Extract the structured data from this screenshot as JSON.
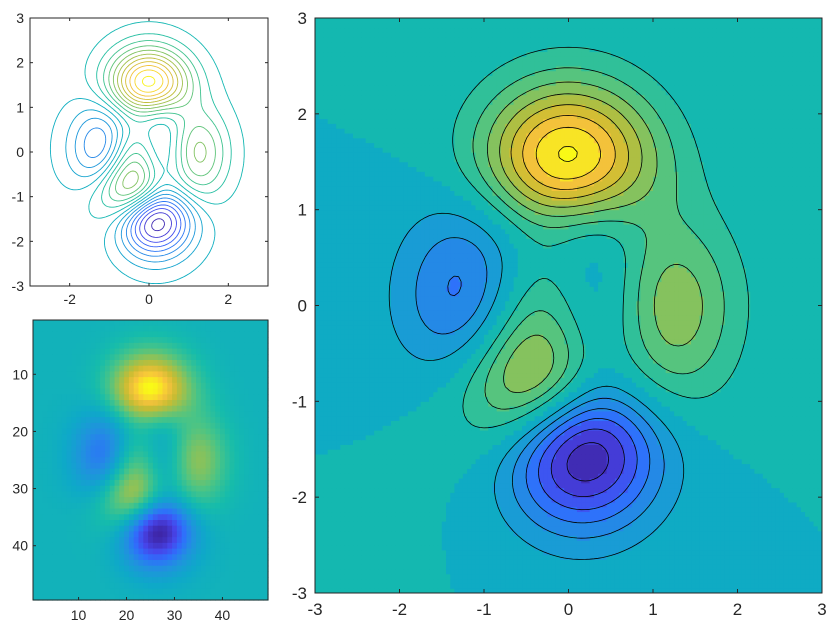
{
  "chart_data": [
    {
      "type": "contour",
      "function": "peaks",
      "x_range": [
        -3,
        3
      ],
      "y_range": [
        -3,
        3
      ],
      "xlim": [
        -3,
        3
      ],
      "ylim": [
        -3,
        3
      ],
      "xticks": [
        "-2",
        "0",
        "2"
      ],
      "yticks": [
        "3",
        "2",
        "1",
        "0",
        "-1",
        "-2",
        "-3"
      ],
      "levels": 20,
      "filled": false,
      "colormap": "parula",
      "title": "",
      "xlabel": "",
      "ylabel": ""
    },
    {
      "type": "heatmap",
      "function": "peaks",
      "grid_size": [
        49,
        49
      ],
      "xticks": [
        "10",
        "20",
        "30",
        "40"
      ],
      "yticks": [
        "10",
        "20",
        "30",
        "40"
      ],
      "y_direction": "reverse",
      "colormap": "parula",
      "title": "",
      "xlabel": "",
      "ylabel": ""
    },
    {
      "type": "contourf",
      "function": "peaks",
      "x_range": [
        -3,
        3
      ],
      "y_range": [
        -3,
        3
      ],
      "xlim": [
        -3,
        3
      ],
      "ylim": [
        -3,
        3
      ],
      "xticks": [
        "-3",
        "-2",
        "-1",
        "0",
        "1",
        "2",
        "3"
      ],
      "yticks": [
        "3",
        "2",
        "1",
        "0",
        "-1",
        "-2",
        "-3"
      ],
      "levels": [
        -6,
        -5,
        -4,
        -3,
        -2,
        -1,
        0,
        1,
        2,
        3,
        4,
        5,
        6,
        7,
        8
      ],
      "filled": true,
      "line_color": "#000000",
      "colormap": "parula",
      "title": "",
      "xlabel": "",
      "ylabel": ""
    }
  ],
  "colormap_stops": [
    "#3e26a8",
    "#4744e9",
    "#2f6ffc",
    "#2191df",
    "#0ea9c8",
    "#16bcab",
    "#4ac486",
    "#8fc257",
    "#c9bc32",
    "#f7c33c",
    "#f9fb15"
  ]
}
